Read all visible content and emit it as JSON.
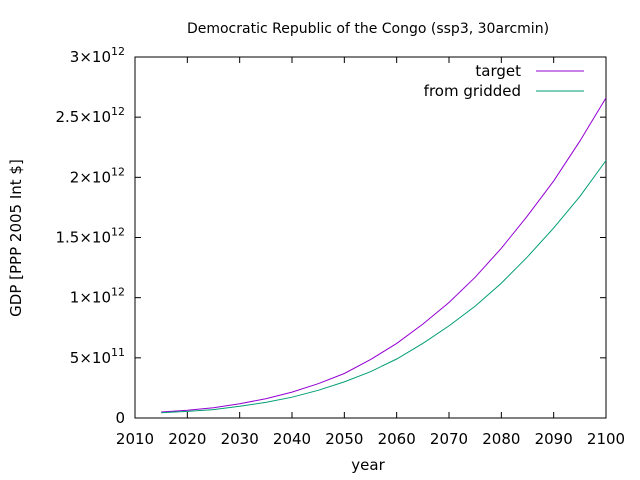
{
  "chart_data": {
    "type": "line",
    "title": "Democratic Republic of the Congo (ssp3, 30arcmin)",
    "xlabel": "year",
    "ylabel": "GDP [PPP 2005 Int $]",
    "xlim": [
      2010,
      2100
    ],
    "ylim": [
      0,
      3000000000000.0
    ],
    "grid": false,
    "legend_position": "top-right",
    "x_ticks": [
      2010,
      2020,
      2030,
      2040,
      2050,
      2060,
      2070,
      2080,
      2090,
      2100
    ],
    "y_ticks": [
      {
        "value": 0,
        "mantissa": "0",
        "exp": ""
      },
      {
        "value": 500000000000.0,
        "mantissa": "5×10",
        "exp": "11"
      },
      {
        "value": 1000000000000.0,
        "mantissa": "1×10",
        "exp": "12"
      },
      {
        "value": 1500000000000.0,
        "mantissa": "1.5×10",
        "exp": "12"
      },
      {
        "value": 2000000000000.0,
        "mantissa": "2×10",
        "exp": "12"
      },
      {
        "value": 2500000000000.0,
        "mantissa": "2.5×10",
        "exp": "12"
      },
      {
        "value": 3000000000000.0,
        "mantissa": "3×10",
        "exp": "12"
      }
    ],
    "x": [
      2015,
      2020,
      2025,
      2030,
      2035,
      2040,
      2045,
      2050,
      2055,
      2060,
      2065,
      2070,
      2075,
      2080,
      2085,
      2090,
      2095,
      2100
    ],
    "series": [
      {
        "name": "target",
        "color": "#9400d3",
        "values": [
          50000000000.0,
          65000000000.0,
          85000000000.0,
          118000000000.0,
          160000000000.0,
          215000000000.0,
          285000000000.0,
          370000000000.0,
          485000000000.0,
          620000000000.0,
          780000000000.0,
          960000000000.0,
          1170000000000.0,
          1410000000000.0,
          1680000000000.0,
          1970000000000.0,
          2300000000000.0,
          2660000000000.0
        ]
      },
      {
        "name": "from gridded",
        "color": "#009e73",
        "values": [
          44000000000.0,
          55000000000.0,
          70000000000.0,
          97000000000.0,
          130000000000.0,
          173000000000.0,
          230000000000.0,
          300000000000.0,
          385000000000.0,
          490000000000.0,
          620000000000.0,
          765000000000.0,
          930000000000.0,
          1120000000000.0,
          1340000000000.0,
          1580000000000.0,
          1840000000000.0,
          2140000000000.0
        ]
      }
    ]
  }
}
